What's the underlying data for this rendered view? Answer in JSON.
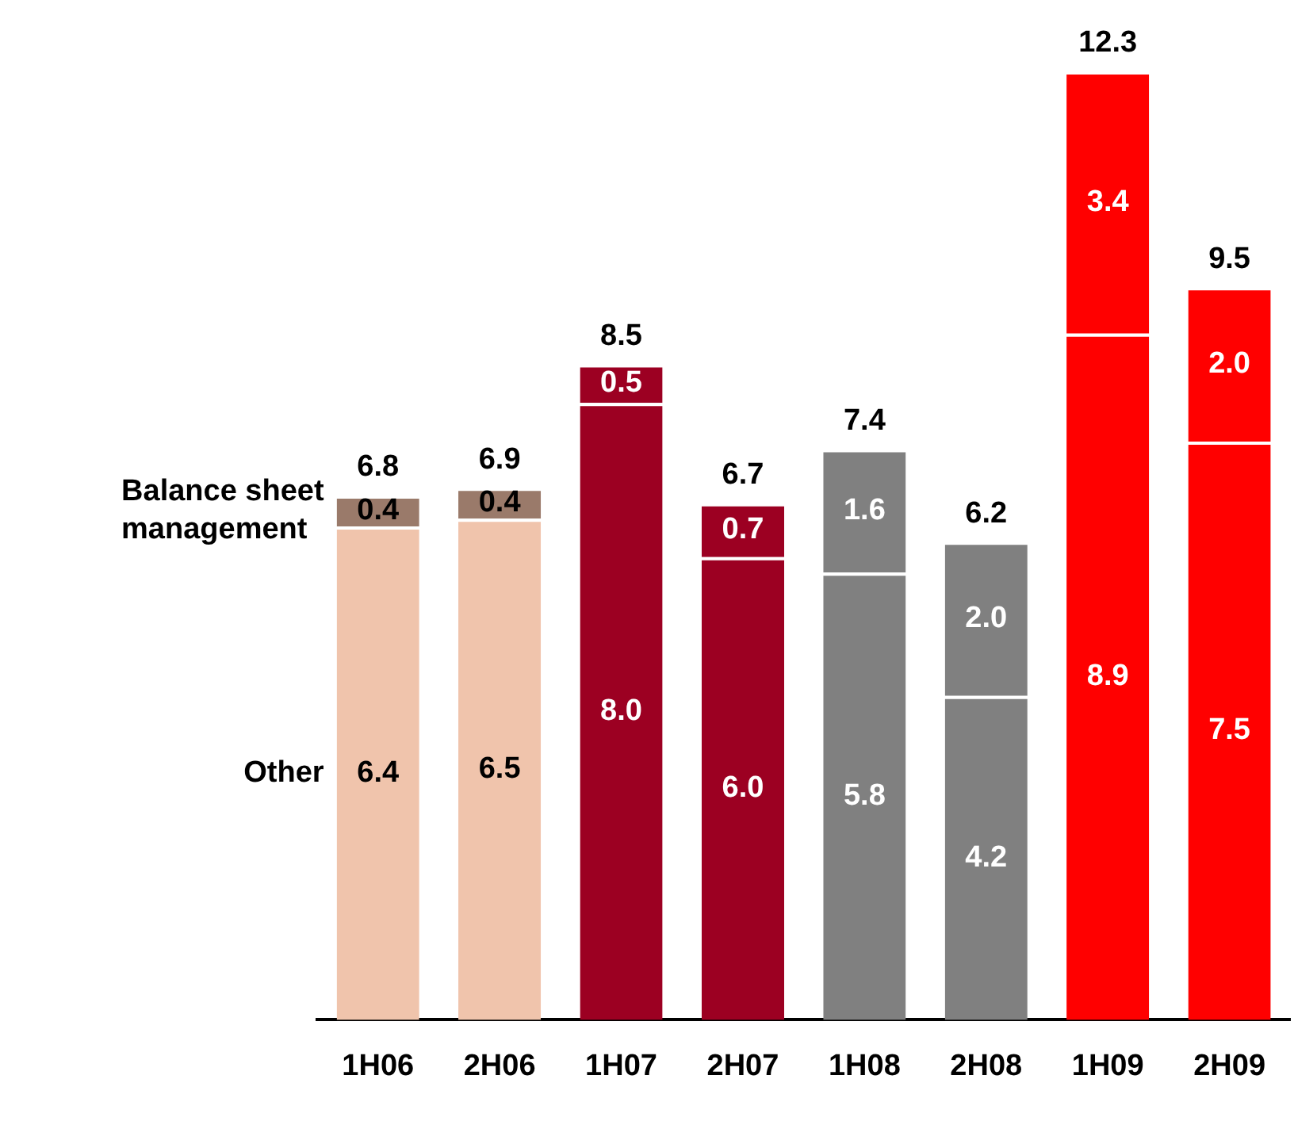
{
  "chart_data": {
    "type": "bar",
    "stacked": true,
    "categories": [
      "1H06",
      "2H06",
      "1H07",
      "2H07",
      "1H08",
      "2H08",
      "1H09",
      "2H09"
    ],
    "series": [
      {
        "name": "Other",
        "values": [
          6.4,
          6.5,
          8.0,
          6.0,
          5.8,
          4.2,
          8.9,
          7.5
        ],
        "colors": [
          "#f0c4ac",
          "#f0c4ac",
          "#9c0022",
          "#9c0022",
          "#808080",
          "#808080",
          "#ff0000",
          "#ff0000"
        ],
        "value_labels": [
          "6.4",
          "6.5",
          "8.0",
          "6.0",
          "5.8",
          "4.2",
          "8.9",
          "7.5"
        ]
      },
      {
        "name": "Balance sheet management",
        "values": [
          0.4,
          0.4,
          0.5,
          0.7,
          1.6,
          2.0,
          3.4,
          2.0
        ],
        "colors": [
          "#9a7a6a",
          "#9a7a6a",
          "#9c0022",
          "#9c0022",
          "#808080",
          "#808080",
          "#ff0000",
          "#ff0000"
        ],
        "value_labels": [
          "0.4",
          "0.4",
          "0.5",
          "0.7",
          "1.6",
          "2.0",
          "3.4",
          "2.0"
        ]
      }
    ],
    "totals": [
      "6.8",
      "6.9",
      "8.5",
      "6.7",
      "7.4",
      "6.2",
      "12.3",
      "9.5"
    ],
    "legend": false,
    "grid": false,
    "tick_labels": "x"
  }
}
